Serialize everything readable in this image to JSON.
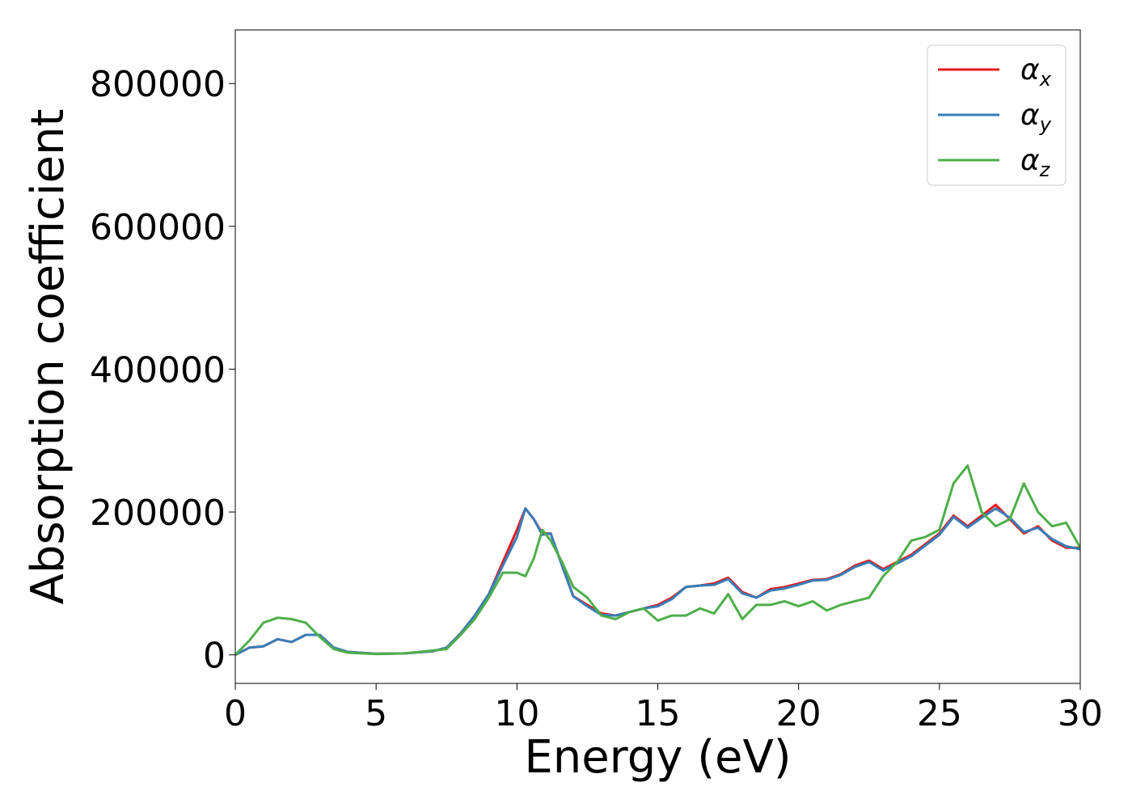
{
  "chart_data": {
    "type": "line",
    "title": "",
    "xlabel": "Energy (eV)",
    "ylabel": "Absorption coefficient",
    "xlim": [
      0,
      30
    ],
    "ylim": [
      -40000,
      875000
    ],
    "xticks": [
      0,
      5,
      10,
      15,
      20,
      25,
      30
    ],
    "yticks": [
      0,
      200000,
      400000,
      600000,
      800000
    ],
    "xtick_labels": [
      "0",
      "5",
      "10",
      "15",
      "20",
      "25",
      "30"
    ],
    "ytick_labels": [
      "0",
      "200000",
      "400000",
      "600000",
      "800000"
    ],
    "grid": false,
    "legend_position": "top-right",
    "series": [
      {
        "name": "α",
        "subscript": "x",
        "color": "#e41a1c",
        "x": [
          0,
          0.5,
          1.0,
          1.5,
          2.0,
          2.5,
          3.0,
          3.5,
          4.0,
          5.0,
          6.0,
          7.0,
          7.5,
          8.0,
          8.5,
          9.0,
          9.5,
          10.0,
          10.3,
          10.6,
          10.9,
          11.2,
          11.6,
          12.0,
          12.5,
          13.0,
          13.5,
          14.0,
          14.5,
          15.0,
          15.5,
          16.0,
          16.5,
          17.0,
          17.5,
          18.0,
          18.5,
          19.0,
          19.5,
          20.0,
          20.5,
          21.0,
          21.5,
          22.0,
          22.5,
          23.0,
          23.5,
          24.0,
          24.5,
          25.0,
          25.5,
          26.0,
          26.5,
          27.0,
          27.5,
          28.0,
          28.5,
          29.0,
          29.5,
          30.0
        ],
        "y": [
          0,
          10000,
          12000,
          22000,
          18000,
          28000,
          28000,
          10000,
          4000,
          1500,
          2000,
          5000,
          10000,
          30000,
          55000,
          85000,
          130000,
          175000,
          205000,
          190000,
          170000,
          170000,
          125000,
          82000,
          70000,
          58000,
          55000,
          60000,
          65000,
          70000,
          80000,
          95000,
          97000,
          100000,
          108000,
          88000,
          80000,
          92000,
          95000,
          100000,
          105000,
          106000,
          113000,
          125000,
          132000,
          120000,
          130000,
          140000,
          155000,
          170000,
          195000,
          180000,
          195000,
          210000,
          190000,
          170000,
          180000,
          160000,
          150000,
          150000
        ]
      },
      {
        "name": "α",
        "subscript": "y",
        "color": "#377eb8",
        "x": [
          0,
          0.5,
          1.0,
          1.5,
          2.0,
          2.5,
          3.0,
          3.5,
          4.0,
          5.0,
          6.0,
          7.0,
          7.5,
          8.0,
          8.5,
          9.0,
          9.5,
          10.0,
          10.3,
          10.6,
          10.9,
          11.2,
          11.6,
          12.0,
          12.5,
          13.0,
          13.5,
          14.0,
          14.5,
          15.0,
          15.5,
          16.0,
          16.5,
          17.0,
          17.5,
          18.0,
          18.5,
          19.0,
          19.5,
          20.0,
          20.5,
          21.0,
          21.5,
          22.0,
          22.5,
          23.0,
          23.5,
          24.0,
          24.5,
          25.0,
          25.5,
          26.0,
          26.5,
          27.0,
          27.5,
          28.0,
          28.5,
          29.0,
          29.5,
          30.0
        ],
        "y": [
          0,
          10000,
          12000,
          22000,
          18000,
          28000,
          28000,
          10000,
          4000,
          1500,
          2000,
          5000,
          10000,
          30000,
          55000,
          85000,
          125000,
          165000,
          205000,
          190000,
          168000,
          170000,
          125000,
          82000,
          68000,
          56000,
          55000,
          60000,
          65000,
          68000,
          78000,
          95000,
          97000,
          98000,
          106000,
          86000,
          80000,
          90000,
          93000,
          98000,
          104000,
          105000,
          112000,
          123000,
          130000,
          118000,
          128000,
          138000,
          153000,
          168000,
          193000,
          178000,
          192000,
          205000,
          192000,
          172000,
          178000,
          162000,
          152000,
          148000
        ]
      },
      {
        "name": "α",
        "subscript": "z",
        "color": "#4daf4a",
        "x": [
          0,
          0.5,
          1.0,
          1.5,
          2.0,
          2.5,
          3.0,
          3.5,
          4.0,
          5.0,
          6.0,
          7.0,
          7.5,
          8.0,
          8.5,
          9.0,
          9.5,
          10.0,
          10.3,
          10.6,
          10.9,
          11.2,
          11.6,
          12.0,
          12.5,
          13.0,
          13.5,
          14.0,
          14.5,
          15.0,
          15.5,
          16.0,
          16.5,
          17.0,
          17.5,
          18.0,
          18.5,
          19.0,
          19.5,
          20.0,
          20.5,
          21.0,
          21.5,
          22.0,
          22.5,
          23.0,
          23.5,
          24.0,
          24.5,
          25.0,
          25.5,
          26.0,
          26.5,
          27.0,
          27.5,
          28.0,
          28.5,
          29.0,
          29.5,
          30.0
        ],
        "y": [
          0,
          20000,
          45000,
          52000,
          50000,
          45000,
          25000,
          8000,
          3000,
          1000,
          2000,
          6000,
          8000,
          28000,
          50000,
          80000,
          115000,
          115000,
          110000,
          135000,
          175000,
          160000,
          130000,
          95000,
          80000,
          55000,
          50000,
          60000,
          65000,
          48000,
          55000,
          55000,
          65000,
          58000,
          85000,
          50000,
          70000,
          70000,
          75000,
          68000,
          75000,
          62000,
          70000,
          75000,
          80000,
          110000,
          130000,
          160000,
          165000,
          175000,
          240000,
          265000,
          200000,
          180000,
          190000,
          240000,
          200000,
          180000,
          185000,
          150000
        ]
      }
    ]
  }
}
